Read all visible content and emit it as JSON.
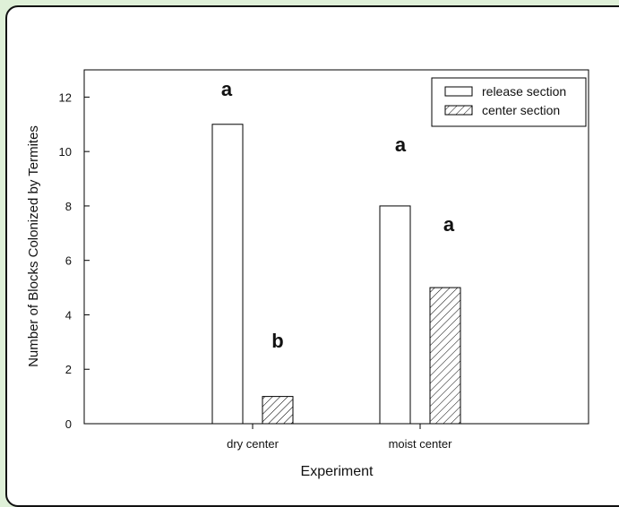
{
  "chart_data": {
    "type": "bar",
    "categories": [
      "dry center",
      "moist center"
    ],
    "series": [
      {
        "name": "release section",
        "values": [
          11,
          8
        ],
        "fill": "#ffffff",
        "pattern": "none"
      },
      {
        "name": "center section",
        "values": [
          1,
          5
        ],
        "fill": "#ffffff",
        "pattern": "hatch"
      }
    ],
    "significance_labels": [
      [
        "a",
        "b"
      ],
      [
        "a",
        "a"
      ]
    ],
    "title": "",
    "xlabel": "Experiment",
    "ylabel": "Number of Blocks Colonized by Termites",
    "ylim": [
      0,
      13
    ],
    "yticks": [
      0,
      2,
      4,
      6,
      8,
      10,
      12
    ],
    "grid": false,
    "legend_position": "top-right"
  },
  "colors": {
    "background": "#dff0d8",
    "frame_border": "#111111",
    "plot_border": "#000000"
  }
}
